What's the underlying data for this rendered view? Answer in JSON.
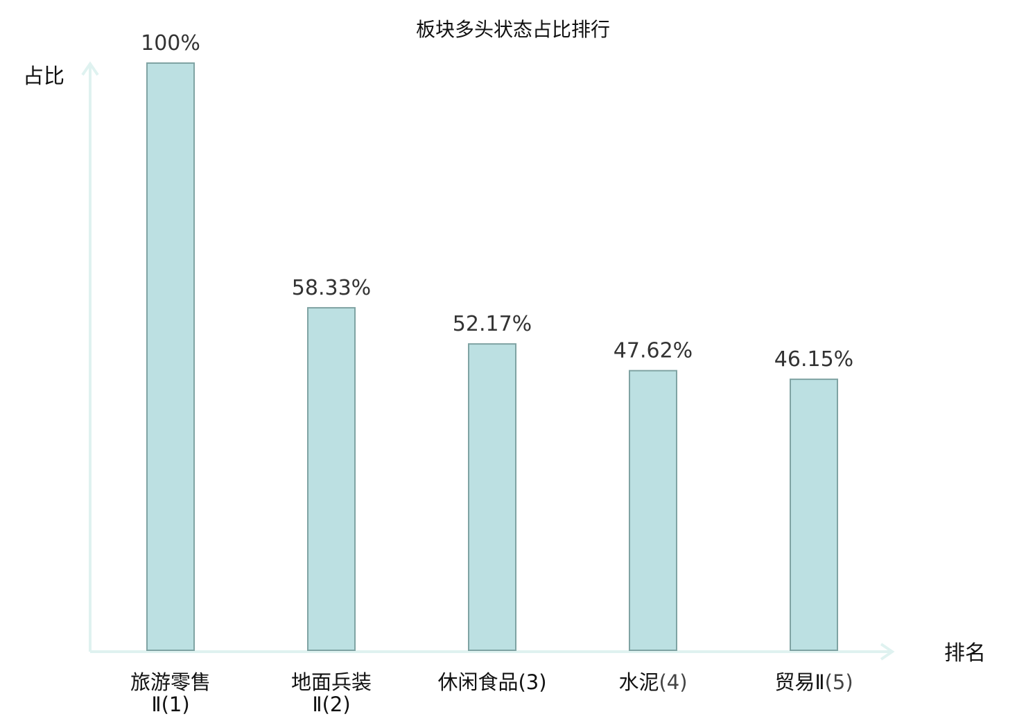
{
  "chart_data": {
    "type": "bar",
    "title": "板块多头状态占比排行",
    "xlabel": "排名",
    "ylabel": "占比",
    "ylim": [
      0,
      100
    ],
    "grid": false,
    "categories": [
      {
        "name_line1": "旅游零售",
        "name_line2": "Ⅱ(1)",
        "highlight": false
      },
      {
        "name_line1": "地面兵装",
        "name_line2": "Ⅱ(2)",
        "highlight": false
      },
      {
        "name_line1": "休闲食品",
        "name_suffix": "(3)",
        "highlight": true
      },
      {
        "name_line1": "水泥",
        "name_suffix": "(4)",
        "highlight": false
      },
      {
        "name_line1": "贸易Ⅱ",
        "name_suffix": "(5)",
        "highlight": false
      }
    ],
    "values": [
      100,
      58.33,
      52.17,
      47.62,
      46.15
    ],
    "value_labels": [
      "100%",
      "58.33%",
      "52.17%",
      "47.62%",
      "46.15%"
    ],
    "colors": {
      "bar_fill": "#bce0e2",
      "bar_stroke": "#7fa3a3",
      "axis": "#dff2f0",
      "highlight_text": "#e31a1c",
      "normal_text": "#111111"
    }
  }
}
